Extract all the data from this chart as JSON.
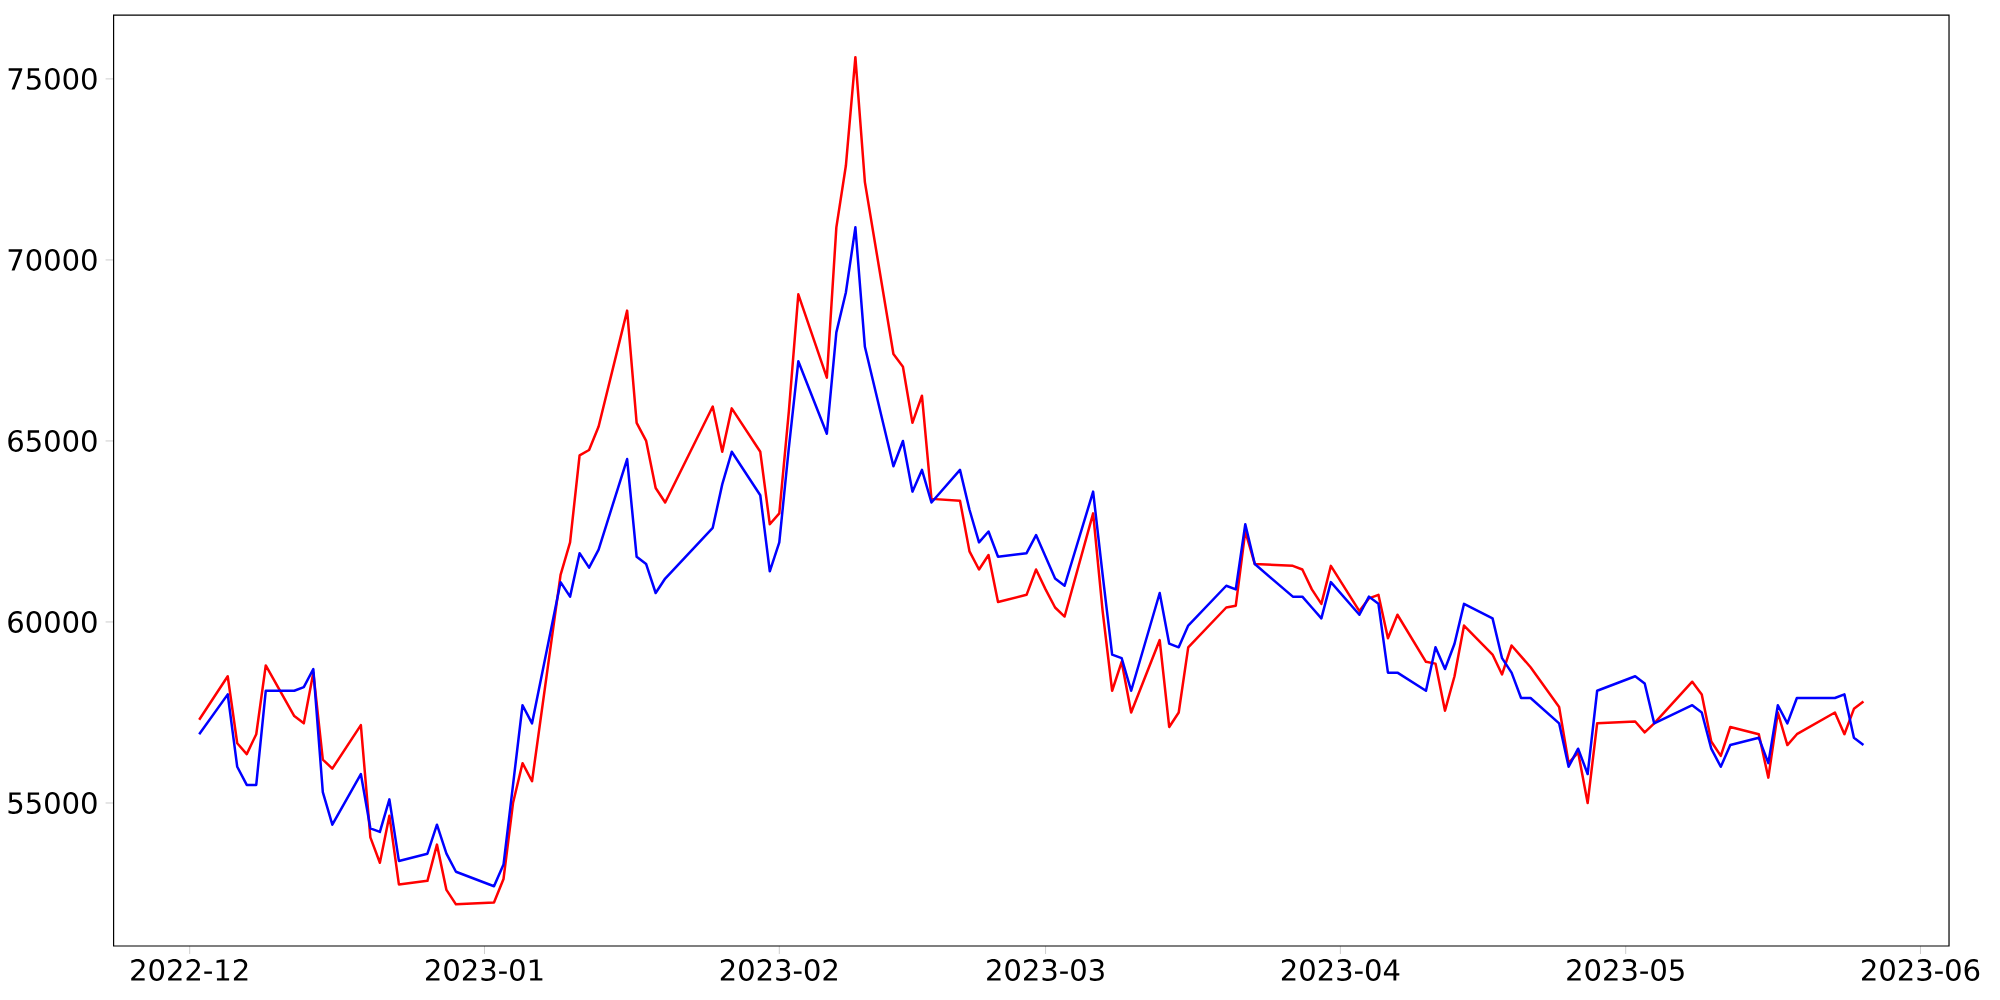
{
  "chart_data": {
    "type": "line",
    "x": [
      "2022-12-02",
      "2022-12-05",
      "2022-12-06",
      "2022-12-07",
      "2022-12-08",
      "2022-12-09",
      "2022-12-12",
      "2022-12-13",
      "2022-12-14",
      "2022-12-15",
      "2022-12-16",
      "2022-12-19",
      "2022-12-20",
      "2022-12-21",
      "2022-12-22",
      "2022-12-23",
      "2022-12-26",
      "2022-12-27",
      "2022-12-28",
      "2022-12-29",
      "2023-01-02",
      "2023-01-03",
      "2023-01-04",
      "2023-01-05",
      "2023-01-06",
      "2023-01-09",
      "2023-01-10",
      "2023-01-11",
      "2023-01-12",
      "2023-01-13",
      "2023-01-16",
      "2023-01-17",
      "2023-01-18",
      "2023-01-19",
      "2023-01-20",
      "2023-01-25",
      "2023-01-26",
      "2023-01-27",
      "2023-01-30",
      "2023-01-31",
      "2023-02-01",
      "2023-02-02",
      "2023-02-03",
      "2023-02-06",
      "2023-02-07",
      "2023-02-08",
      "2023-02-09",
      "2023-02-10",
      "2023-02-13",
      "2023-02-14",
      "2023-02-15",
      "2023-02-16",
      "2023-02-17",
      "2023-02-20",
      "2023-02-21",
      "2023-02-22",
      "2023-02-23",
      "2023-02-24",
      "2023-02-27",
      "2023-02-28",
      "2023-03-01",
      "2023-03-02",
      "2023-03-03",
      "2023-03-06",
      "2023-03-07",
      "2023-03-08",
      "2023-03-09",
      "2023-03-10",
      "2023-03-13",
      "2023-03-14",
      "2023-03-15",
      "2023-03-16",
      "2023-03-20",
      "2023-03-21",
      "2023-03-22",
      "2023-03-23",
      "2023-03-27",
      "2023-03-28",
      "2023-03-29",
      "2023-03-30",
      "2023-03-31",
      "2023-04-03",
      "2023-04-04",
      "2023-04-05",
      "2023-04-06",
      "2023-04-07",
      "2023-04-10",
      "2023-04-11",
      "2023-04-12",
      "2023-04-13",
      "2023-04-14",
      "2023-04-17",
      "2023-04-18",
      "2023-04-19",
      "2023-04-20",
      "2023-04-21",
      "2023-04-24",
      "2023-04-25",
      "2023-04-26",
      "2023-04-27",
      "2023-04-28",
      "2023-05-02",
      "2023-05-03",
      "2023-05-04",
      "2023-05-08",
      "2023-05-09",
      "2023-05-10",
      "2023-05-11",
      "2023-05-12",
      "2023-05-15",
      "2023-05-16",
      "2023-05-17",
      "2023-05-18",
      "2023-05-19",
      "2023-05-23",
      "2023-05-24",
      "2023-05-25",
      "2023-05-26"
    ],
    "series": [
      {
        "color": "#ff0000",
        "values": [
          57300,
          58500,
          56650,
          56350,
          56900,
          58800,
          57400,
          57200,
          58600,
          56200,
          55950,
          57150,
          54050,
          53350,
          54650,
          52750,
          52850,
          53850,
          52600,
          52200,
          52250,
          52900,
          55000,
          56100,
          55600,
          61300,
          62200,
          64600,
          64750,
          65400,
          68600,
          65500,
          65000,
          63700,
          63300,
          65950,
          64700,
          65900,
          64700,
          62700,
          63000,
          65800,
          69050,
          66750,
          70900,
          72600,
          75600,
          72150,
          67400,
          67050,
          65500,
          66250,
          63400,
          63350,
          61950,
          61450,
          61850,
          60550,
          60750,
          61450,
          60900,
          60400,
          60150,
          63000,
          60300,
          58100,
          58900,
          57500,
          59500,
          57100,
          57500,
          59300,
          60400,
          60450,
          62500,
          61600,
          61550,
          61450,
          60900,
          60500,
          61550,
          60300,
          60650,
          60750,
          59550,
          60200,
          58900,
          58850,
          57550,
          58500,
          59900,
          59100,
          58550,
          59350,
          59050,
          58750,
          57650,
          56100,
          56400,
          55000,
          57200,
          57250,
          56950,
          57200,
          58350,
          58000,
          56700,
          56300,
          57100,
          56900,
          55700,
          57500,
          56600,
          56900,
          57500,
          56900,
          57600,
          57800
        ]
      },
      {
        "color": "#0000ff",
        "values": [
          56900,
          58000,
          56000,
          55500,
          55500,
          58100,
          58100,
          58200,
          58700,
          55300,
          54400,
          55800,
          54300,
          54200,
          55100,
          53400,
          53600,
          54400,
          53600,
          53100,
          52700,
          53300,
          55500,
          57700,
          57200,
          61100,
          60700,
          61900,
          61500,
          62000,
          64500,
          61800,
          61600,
          60800,
          61200,
          62600,
          63800,
          64700,
          63500,
          61400,
          62200,
          64800,
          67200,
          65200,
          68000,
          69100,
          70900,
          67600,
          64300,
          65000,
          63600,
          64200,
          63300,
          64200,
          63100,
          62200,
          62500,
          61800,
          61900,
          62400,
          61800,
          61200,
          61000,
          63600,
          61300,
          59100,
          59000,
          58100,
          60800,
          59400,
          59300,
          59900,
          61000,
          60900,
          62700,
          61600,
          60700,
          60700,
          60400,
          60100,
          61100,
          60200,
          60700,
          60500,
          58600,
          58600,
          58100,
          59300,
          58700,
          59400,
          60500,
          60100,
          59000,
          58600,
          57900,
          57900,
          57200,
          56000,
          56500,
          55800,
          58100,
          58500,
          58300,
          57200,
          57700,
          57500,
          56500,
          56000,
          56600,
          56800,
          56100,
          57700,
          57200,
          57900,
          57900,
          58000,
          56800,
          56600
        ]
      }
    ],
    "xlim": [
      "2022-11-23",
      "2023-06-04"
    ],
    "xticks": [
      "2022-12",
      "2023-01",
      "2023-02",
      "2023-03",
      "2023-04",
      "2023-05",
      "2023-06"
    ],
    "ylim": [
      51050,
      76760
    ],
    "yticks": [
      55000,
      60000,
      65000,
      70000,
      75000
    ]
  }
}
